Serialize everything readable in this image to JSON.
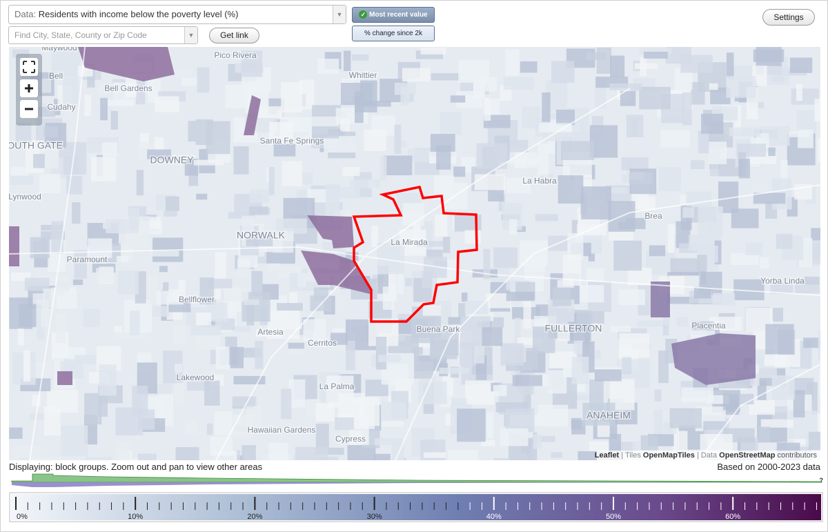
{
  "controls": {
    "data_prefix": "Data:",
    "data_select": "Residents with income below the poverty level (%)",
    "search_placeholder": "Find City, State, County or Zip Code",
    "get_link": "Get link",
    "most_recent": "Most recent value",
    "pct_change": "% change since 2k",
    "settings": "Settings"
  },
  "map": {
    "labels": [
      "Maywood",
      "Pico Rivera",
      "Whittier",
      "Bell",
      "Bell Gardens",
      "Cudahy",
      "Santa Fe Springs",
      "SOUTH GATE",
      "DOWNEY",
      "La Habra",
      "Lynwood",
      "Brea",
      "NORWALK",
      "La Mirada",
      "Paramount",
      "Yorba Linda",
      "Bellflower",
      "FULLERTON",
      "Placentia",
      "Buena Park",
      "Artesia",
      "Cerritos",
      "Lakewood",
      "La Palma",
      "ANAHEIM",
      "Hawaiian Gardens",
      "Cypress"
    ],
    "attribution": {
      "leaflet": "Leaflet",
      "tiles": "| Tiles",
      "tiles_src": "OpenMapTiles",
      "data": "| Data",
      "data_src": "OpenStreetMap",
      "contributors": "contributors"
    }
  },
  "footer": {
    "displaying": "Displaying: block groups. Zoom out and pan to view other areas",
    "based_on": "Based on 2000-2023 data",
    "help": "?"
  },
  "legend": {
    "ticks": [
      "0%",
      "10%",
      "20%",
      "30%",
      "40%",
      "50%",
      "60%"
    ]
  }
}
